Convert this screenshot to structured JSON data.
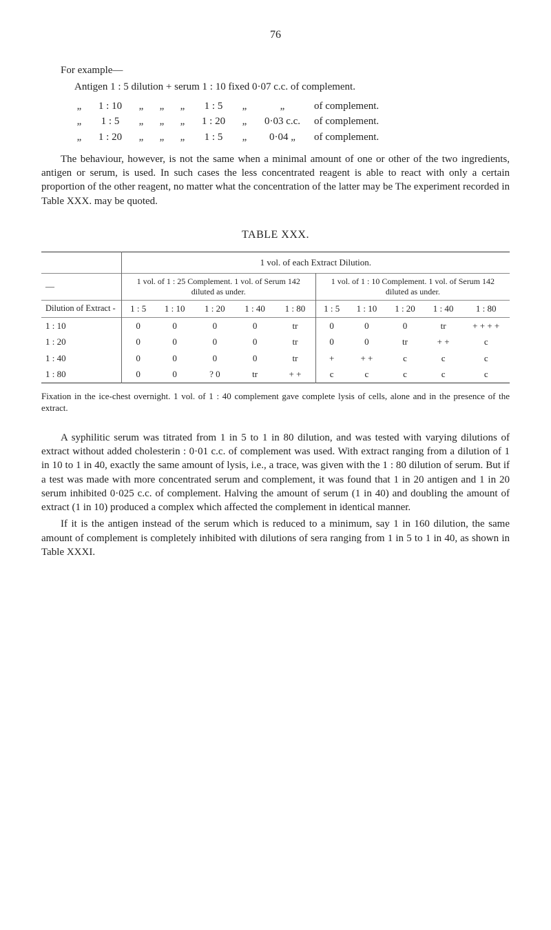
{
  "page_number": "76",
  "intro": {
    "lead": "For example—",
    "line1": "Antigen 1 : 5 dilution + serum 1 : 10 fixed 0·07 c.c. of complement.",
    "rows": [
      {
        "a": "„",
        "b": "1 : 10",
        "c": "„",
        "d": "„",
        "e": "„",
        "f": "1 : 5",
        "g": "„",
        "h": "„",
        "i": "of complement."
      },
      {
        "a": "„",
        "b": "1 : 5",
        "c": "„",
        "d": "„",
        "e": "„",
        "f": "1 : 20",
        "g": "„",
        "h": "0·03 c.c.",
        "i": "of complement."
      },
      {
        "a": "„",
        "b": "1 : 20",
        "c": "„",
        "d": "„",
        "e": "„",
        "f": "1 : 5",
        "g": "„",
        "h": "0·04 „",
        "i": "of complement."
      }
    ]
  },
  "para1": "The behaviour, however, is not the same when a minimal amount of one or other of the two ingredients, antigen or serum, is used. In such cases the less concentrated reagent is able to react with only a certain proportion of the other reagent, no matter what the concentration of the latter may be The experiment recorded in Table XXX. may be quoted.",
  "table_title": "TABLE XXX.",
  "table": {
    "spanner_top": "1 vol. of each Extract Dilution.",
    "spanner_left": "1 vol. of 1 : 25 Complement. 1 vol. of Serum 142 diluted as under.",
    "spanner_right": "1 vol. of 1 : 10 Complement. 1 vol. of Serum 142 diluted as under.",
    "stub_head": "Dilution of Extract  -",
    "col_heads": [
      "1 : 5",
      "1 : 10",
      "1 : 20",
      "1 : 40",
      "1 : 80",
      "1 : 5",
      "1 : 10",
      "1 : 20",
      "1 : 40",
      "1 : 80"
    ],
    "rows": [
      {
        "stub": "1 : 10",
        "cells": [
          "0",
          "0",
          "0",
          "0",
          "tr",
          "0",
          "0",
          "0",
          "tr",
          "+ + + +"
        ]
      },
      {
        "stub": "1 : 20",
        "cells": [
          "0",
          "0",
          "0",
          "0",
          "tr",
          "0",
          "0",
          "tr",
          "+ +",
          "c"
        ]
      },
      {
        "stub": "1 : 40",
        "cells": [
          "0",
          "0",
          "0",
          "0",
          "tr",
          "+",
          "+ +",
          "c",
          "c",
          "c"
        ]
      },
      {
        "stub": "1 : 80",
        "cells": [
          "0",
          "0",
          "? 0",
          "tr",
          "+ +",
          "c",
          "c",
          "c",
          "c",
          "c"
        ]
      }
    ]
  },
  "footnote": "Fixation in the ice-chest overnight. 1 vol. of 1 : 40 complement gave complete lysis of cells, alone and in the presence of the extract.",
  "para2": "A syphilitic serum was titrated from 1 in 5 to 1 in 80 dilution, and was tested with varying dilutions of extract without added cholesterin : 0·01 c.c. of complement was used. With extract ranging from a dilution of 1 in 10 to 1 in 40, exactly the same amount of lysis, i.e., a trace, was given with the 1 : 80 dilution of serum. But if a test was made with more concentrated serum and complement, it was found that 1 in 20 antigen and 1 in 20 serum inhibited 0·025 c.c. of complement. Halving the amount of serum (1 in 40) and doubling the amount of extract (1 in 10) produced a complex which affected the complement in identical manner.",
  "para3": "If it is the antigen instead of the serum which is reduced to a minimum, say 1 in 160 dilution, the same amount of complement is completely inhibited with dilutions of sera ranging from 1 in 5 to 1 in 40, as shown in Table XXXI.",
  "colors": {
    "text": "#222222",
    "rule": "#333333",
    "rule_light": "#888888",
    "background": "#ffffff"
  }
}
